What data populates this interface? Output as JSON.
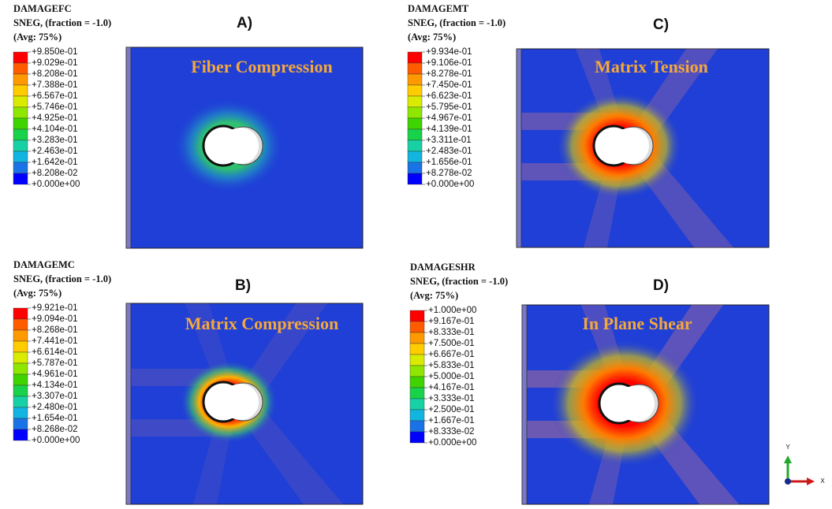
{
  "panels": [
    {
      "label": "A)",
      "caption": "Fiber Compression",
      "legend": {
        "variable": "DAMAGEFC",
        "section": "SNEG, (fraction = -1.0)",
        "averaging": "(Avg: 75%)",
        "levels": [
          "+9.850e-01",
          "+9.029e-01",
          "+8.208e-01",
          "+7.388e-01",
          "+6.567e-01",
          "+5.746e-01",
          "+4.925e-01",
          "+4.104e-01",
          "+3.283e-01",
          "+2.463e-01",
          "+1.642e-01",
          "+8.208e-02",
          "+0.000e+00"
        ]
      }
    },
    {
      "label": "B)",
      "caption": "Matrix Compression",
      "legend": {
        "variable": "DAMAGEMC",
        "section": "SNEG, (fraction = -1.0)",
        "averaging": "(Avg: 75%)",
        "levels": [
          "+9.921e-01",
          "+9.094e-01",
          "+8.268e-01",
          "+7.441e-01",
          "+6.614e-01",
          "+5.787e-01",
          "+4.961e-01",
          "+4.134e-01",
          "+3.307e-01",
          "+2.480e-01",
          "+1.654e-01",
          "+8.268e-02",
          "+0.000e+00"
        ]
      }
    },
    {
      "label": "C)",
      "caption": "Matrix Tension",
      "legend": {
        "variable": "DAMAGEMT",
        "section": "SNEG, (fraction = -1.0)",
        "averaging": "(Avg: 75%)",
        "levels": [
          "+9.934e-01",
          "+9.106e-01",
          "+8.278e-01",
          "+7.450e-01",
          "+6.623e-01",
          "+5.795e-01",
          "+4.967e-01",
          "+4.139e-01",
          "+3.311e-01",
          "+2.483e-01",
          "+1.656e-01",
          "+8.278e-02",
          "+0.000e+00"
        ]
      }
    },
    {
      "label": "D)",
      "caption": "In Plane Shear",
      "legend": {
        "variable": "DAMAGESHR",
        "section": "SNEG, (fraction = -1.0)",
        "averaging": "(Avg: 75%)",
        "levels": [
          "+1.000e+00",
          "+9.167e-01",
          "+8.333e-01",
          "+7.500e-01",
          "+6.667e-01",
          "+5.833e-01",
          "+5.000e-01",
          "+4.167e-01",
          "+3.333e-01",
          "+2.500e-01",
          "+1.667e-01",
          "+8.333e-02",
          "+0.000e+00"
        ]
      }
    }
  ],
  "triad": {
    "y": "Y",
    "x": "X"
  }
}
